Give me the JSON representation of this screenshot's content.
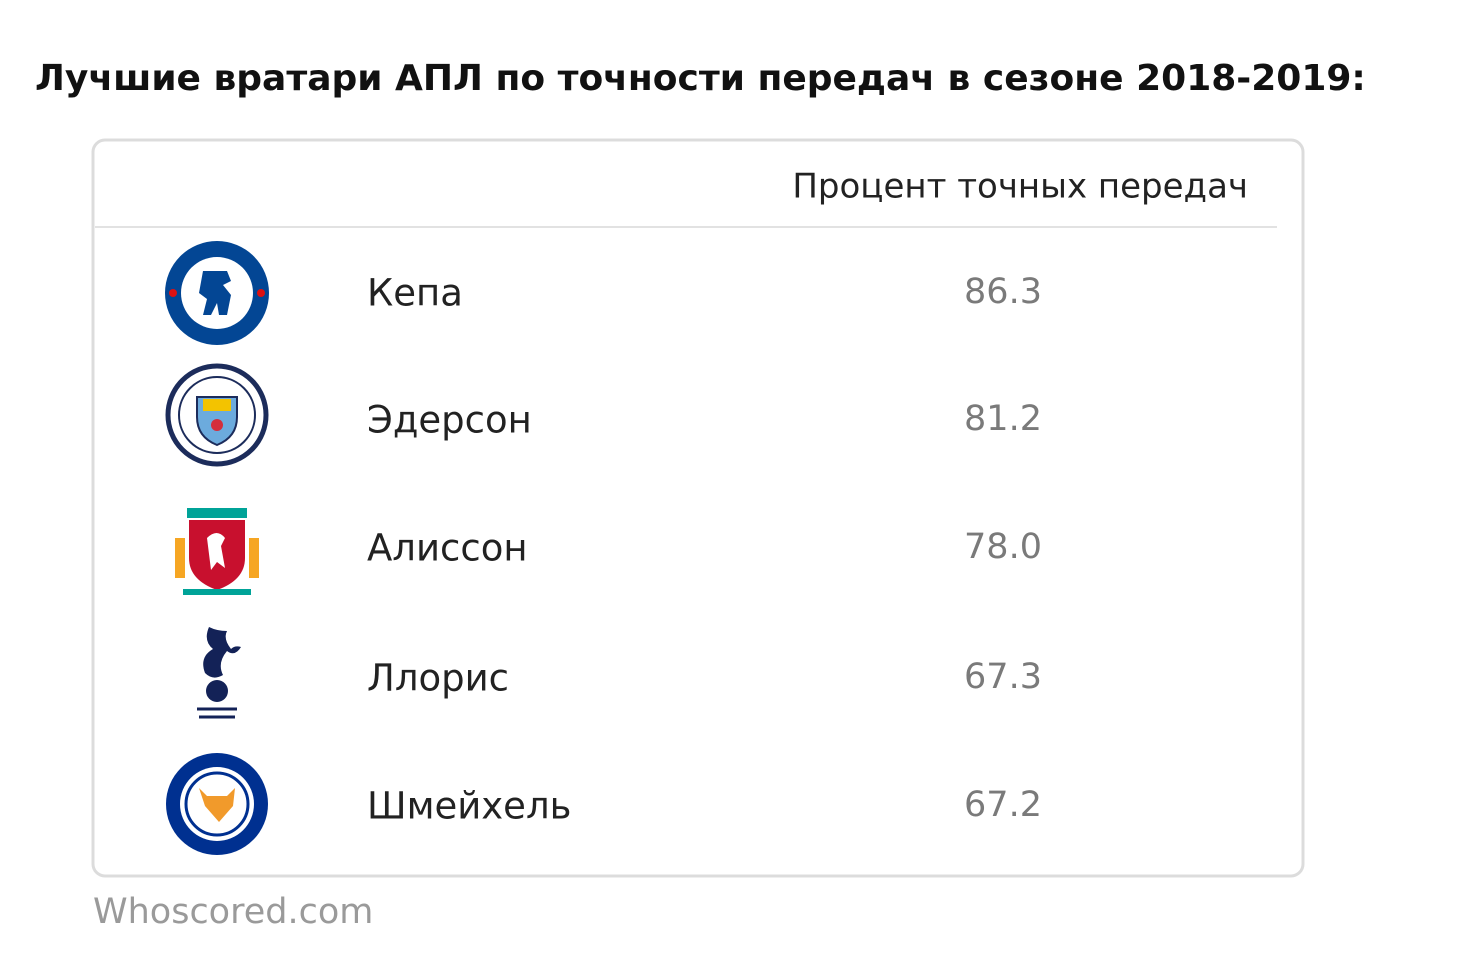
{
  "title": "Лучшие вратари АПЛ по точности передач в сезоне 2018-2019:",
  "table": {
    "header": "Процент точных передач",
    "rows": [
      [
        "Кепа",
        "86.3"
      ],
      [
        "Эдерсон",
        "81.2"
      ],
      [
        "Алиссон",
        "78.0"
      ],
      [
        "Ллорис",
        "67.3"
      ],
      [
        "Шмейхель",
        "67.2"
      ]
    ]
  },
  "source": "Whoscored.com"
}
